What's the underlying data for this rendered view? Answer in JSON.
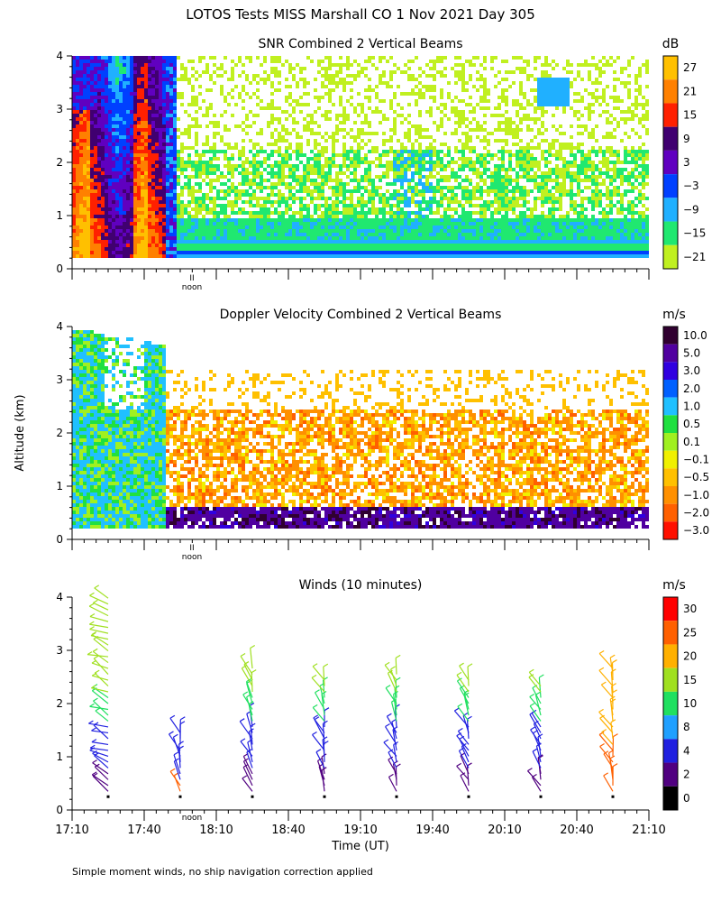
{
  "figure": {
    "title": "LOTOS Tests MISS Marshall CO    1 Nov 2021 Day 305",
    "ylabel": "Altitude (km)",
    "xlabel": "Time (UT)",
    "footnote": "Simple moment winds, no ship navigation correction applied",
    "noon_label": "noon",
    "noon_marker": "II"
  },
  "chart_data": [
    {
      "type": "heatmap",
      "title": "SNR Combined 2 Vertical Beams",
      "units": "dB",
      "ylim": [
        0,
        4
      ],
      "yticks": [
        "0",
        "1",
        "2",
        "3",
        "4"
      ],
      "x_range": [
        "17:10",
        "21:10"
      ],
      "colorbar_labels": [
        "27",
        "21",
        "15",
        "9",
        "3",
        "−3",
        "−9",
        "−15",
        "−21"
      ],
      "colorbar_colors": [
        "#ffc000",
        "#ff8000",
        "#ff2000",
        "#400070",
        "#6000c0",
        "#0040ff",
        "#20b0ff",
        "#20e870",
        "#c0f020"
      ]
    },
    {
      "type": "heatmap",
      "title": "Doppler Velocity Combined 2 Vertical Beams",
      "units": "m/s",
      "ylim": [
        0,
        4
      ],
      "yticks": [
        "0",
        "1",
        "2",
        "3",
        "4"
      ],
      "x_range": [
        "17:10",
        "21:10"
      ],
      "colorbar_labels": [
        "10.0",
        "5.0",
        "3.0",
        "2.0",
        "1.0",
        "0.5",
        "0.1",
        "−0.1",
        "−0.5",
        "−1.0",
        "−2.0",
        "−3.0"
      ],
      "colorbar_colors": [
        "#300030",
        "#5000a0",
        "#3000e0",
        "#0060ff",
        "#20c0ff",
        "#20e040",
        "#a0f020",
        "#f0f000",
        "#ffc000",
        "#ff9000",
        "#ff6000",
        "#ff1000"
      ]
    },
    {
      "type": "scatter",
      "title": "Winds (10 minutes)",
      "units": "m/s",
      "ylim": [
        0,
        4
      ],
      "yticks": [
        "0",
        "1",
        "2",
        "3",
        "4"
      ],
      "xticks": [
        "17:10",
        "17:40",
        "18:10",
        "18:40",
        "19:10",
        "19:40",
        "20:10",
        "20:40",
        "21:10"
      ],
      "colorbar_labels": [
        "30",
        "25",
        "20",
        "15",
        "10",
        "8",
        "4",
        "2",
        "0"
      ],
      "colorbar_colors": [
        "#ff0000",
        "#ff6000",
        "#ffb000",
        "#a0e020",
        "#20e060",
        "#20a0ff",
        "#2020e0",
        "#500080",
        "#000000"
      ],
      "profiles": [
        {
          "time": "17:25",
          "base_km": 0.3,
          "top_km": 4.0
        },
        {
          "time": "17:55",
          "base_km": 0.3,
          "top_km": 1.5
        },
        {
          "time": "18:25",
          "base_km": 0.3,
          "top_km": 2.7
        },
        {
          "time": "18:55",
          "base_km": 0.3,
          "top_km": 2.5
        },
        {
          "time": "19:25",
          "base_km": 0.3,
          "top_km": 2.6
        },
        {
          "time": "19:55",
          "base_km": 0.3,
          "top_km": 2.5
        },
        {
          "time": "20:25",
          "base_km": 0.3,
          "top_km": 2.4
        },
        {
          "time": "20:55",
          "base_km": 0.0,
          "top_km": 2.7
        }
      ]
    }
  ]
}
